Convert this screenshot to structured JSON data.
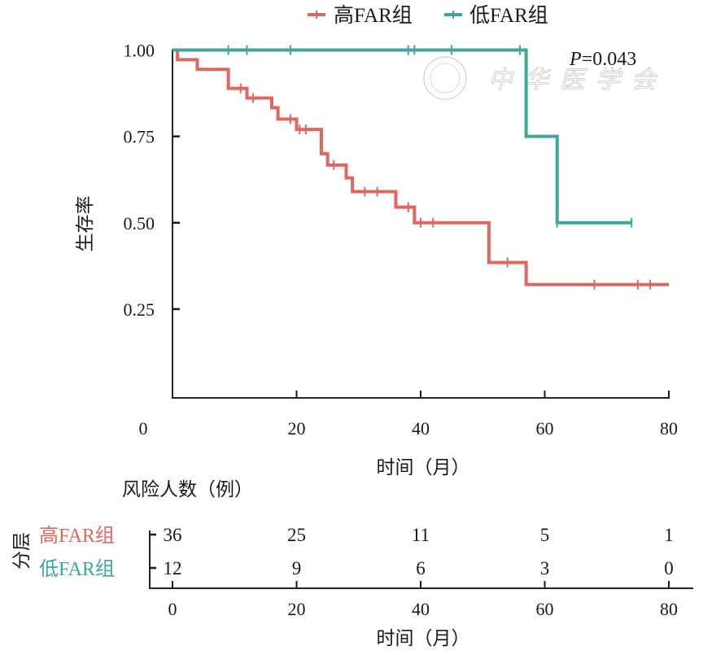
{
  "chart_data": {
    "type": "line",
    "subtype": "kaplan-meier",
    "title": "",
    "xlabel": "时间（月）",
    "ylabel": "生存率",
    "xlim": [
      0,
      80
    ],
    "ylim": [
      0,
      1.0
    ],
    "x_ticks": [
      0,
      20,
      40,
      60,
      80
    ],
    "x_tick_labels": [
      "0",
      "20",
      "40",
      "60",
      "80"
    ],
    "y_ticks": [
      1.0,
      0.75,
      0.5,
      0.25
    ],
    "y_tick_labels": [
      "1.00",
      "0.75",
      "0.50",
      "0.25"
    ],
    "grid": false,
    "legend_position": "top",
    "annotation": {
      "p_label": "P",
      "p_value_text": "=0.043"
    },
    "watermark": "中华医学会",
    "series": [
      {
        "name": "高FAR组",
        "color": "#E0675F",
        "steps": [
          [
            0,
            1.0
          ],
          [
            0.8,
            0.972
          ],
          [
            4,
            0.944
          ],
          [
            9,
            0.889
          ],
          [
            12,
            0.861
          ],
          [
            16,
            0.833
          ],
          [
            17,
            0.8
          ],
          [
            20,
            0.77
          ],
          [
            24,
            0.7
          ],
          [
            25,
            0.667
          ],
          [
            28,
            0.63
          ],
          [
            29,
            0.59
          ],
          [
            36,
            0.545
          ],
          [
            39,
            0.5
          ],
          [
            51,
            0.385
          ],
          [
            57,
            0.321
          ]
        ],
        "end_time": 80,
        "censored": [
          11,
          13,
          19,
          20.5,
          21.5,
          26,
          31,
          33,
          38,
          40,
          42,
          54,
          68,
          75,
          77
        ]
      },
      {
        "name": "低FAR组",
        "color": "#3FA69C",
        "steps": [
          [
            0,
            1.0
          ],
          [
            57,
            0.75
          ],
          [
            62,
            0.5
          ]
        ],
        "end_time": 74,
        "censored": [
          9,
          12,
          19,
          38,
          39,
          45,
          56,
          62,
          74
        ]
      }
    ],
    "risk_table": {
      "title": "风险人数（例）",
      "strata_label": "分层",
      "xlabel": "时间（月）",
      "times": [
        0,
        20,
        40,
        60,
        80
      ],
      "time_labels": [
        "0",
        "20",
        "40",
        "60",
        "80"
      ],
      "rows": [
        {
          "group": "高FAR组",
          "color": "#E0675F",
          "counts": [
            "36",
            "25",
            "11",
            "5",
            "1"
          ]
        },
        {
          "group": "低FAR组",
          "color": "#3FA69C",
          "counts": [
            "12",
            "9",
            "6",
            "3",
            "0"
          ]
        }
      ]
    }
  }
}
